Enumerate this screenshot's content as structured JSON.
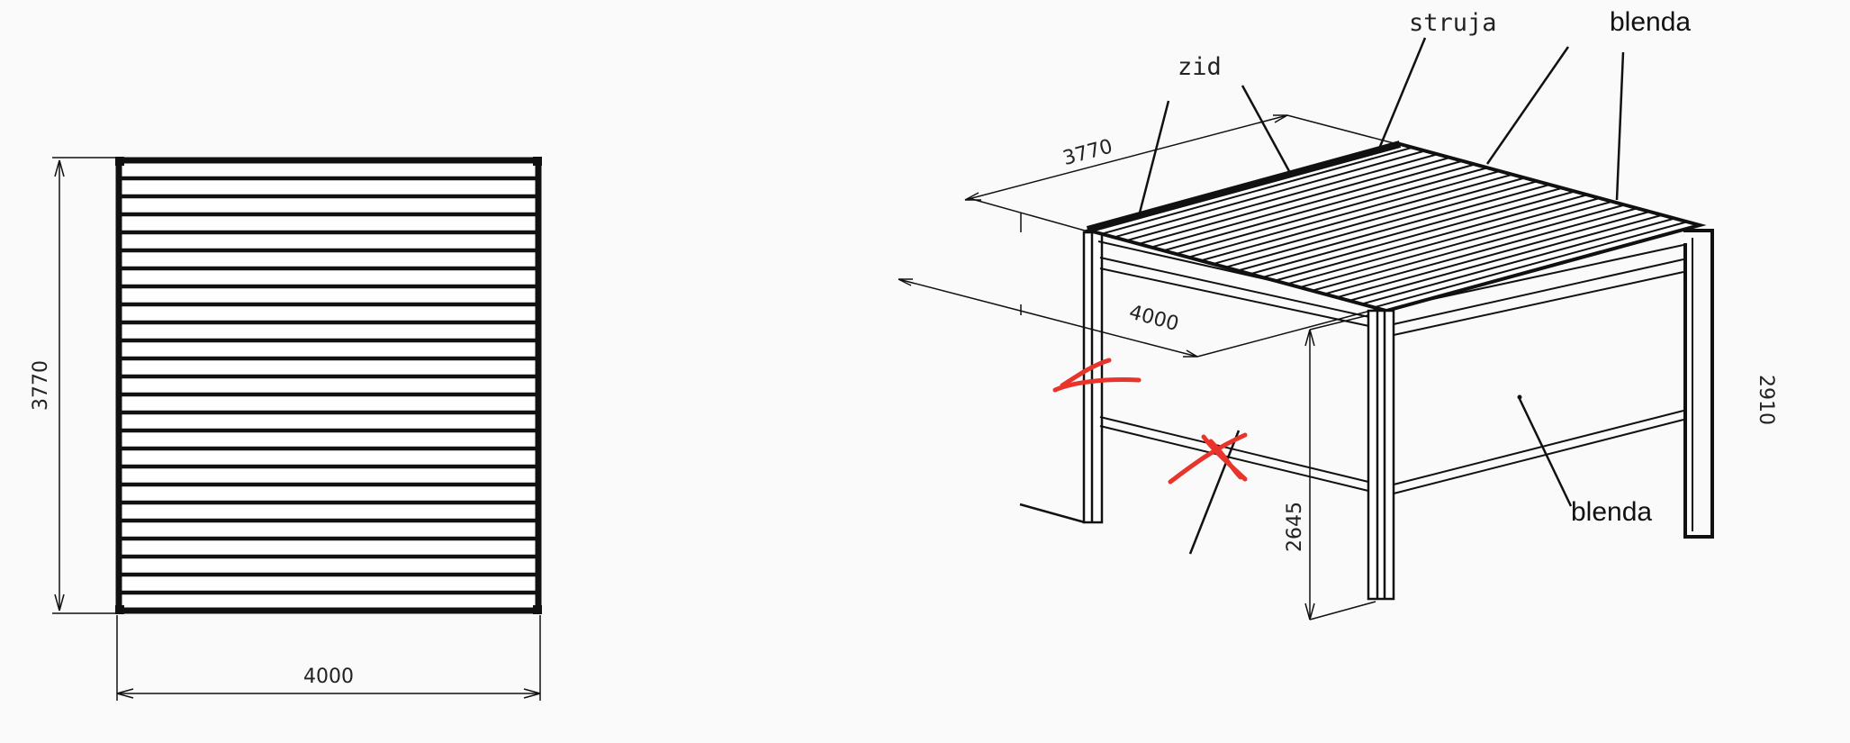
{
  "plan_view": {
    "width_label": "4000",
    "depth_label": "3770",
    "slat_count": 25
  },
  "iso_view": {
    "dimensions": {
      "depth": "3770",
      "width": "4000",
      "clear_height": "2645",
      "total_height": "2910"
    },
    "callouts": {
      "wall": "zid",
      "power": "struja",
      "blind_top": "blenda",
      "blind_front": "blenda"
    },
    "slat_count": 24
  },
  "colors": {
    "line": "#111111",
    "paper": "#fafafa",
    "mark": "#e8342a"
  }
}
